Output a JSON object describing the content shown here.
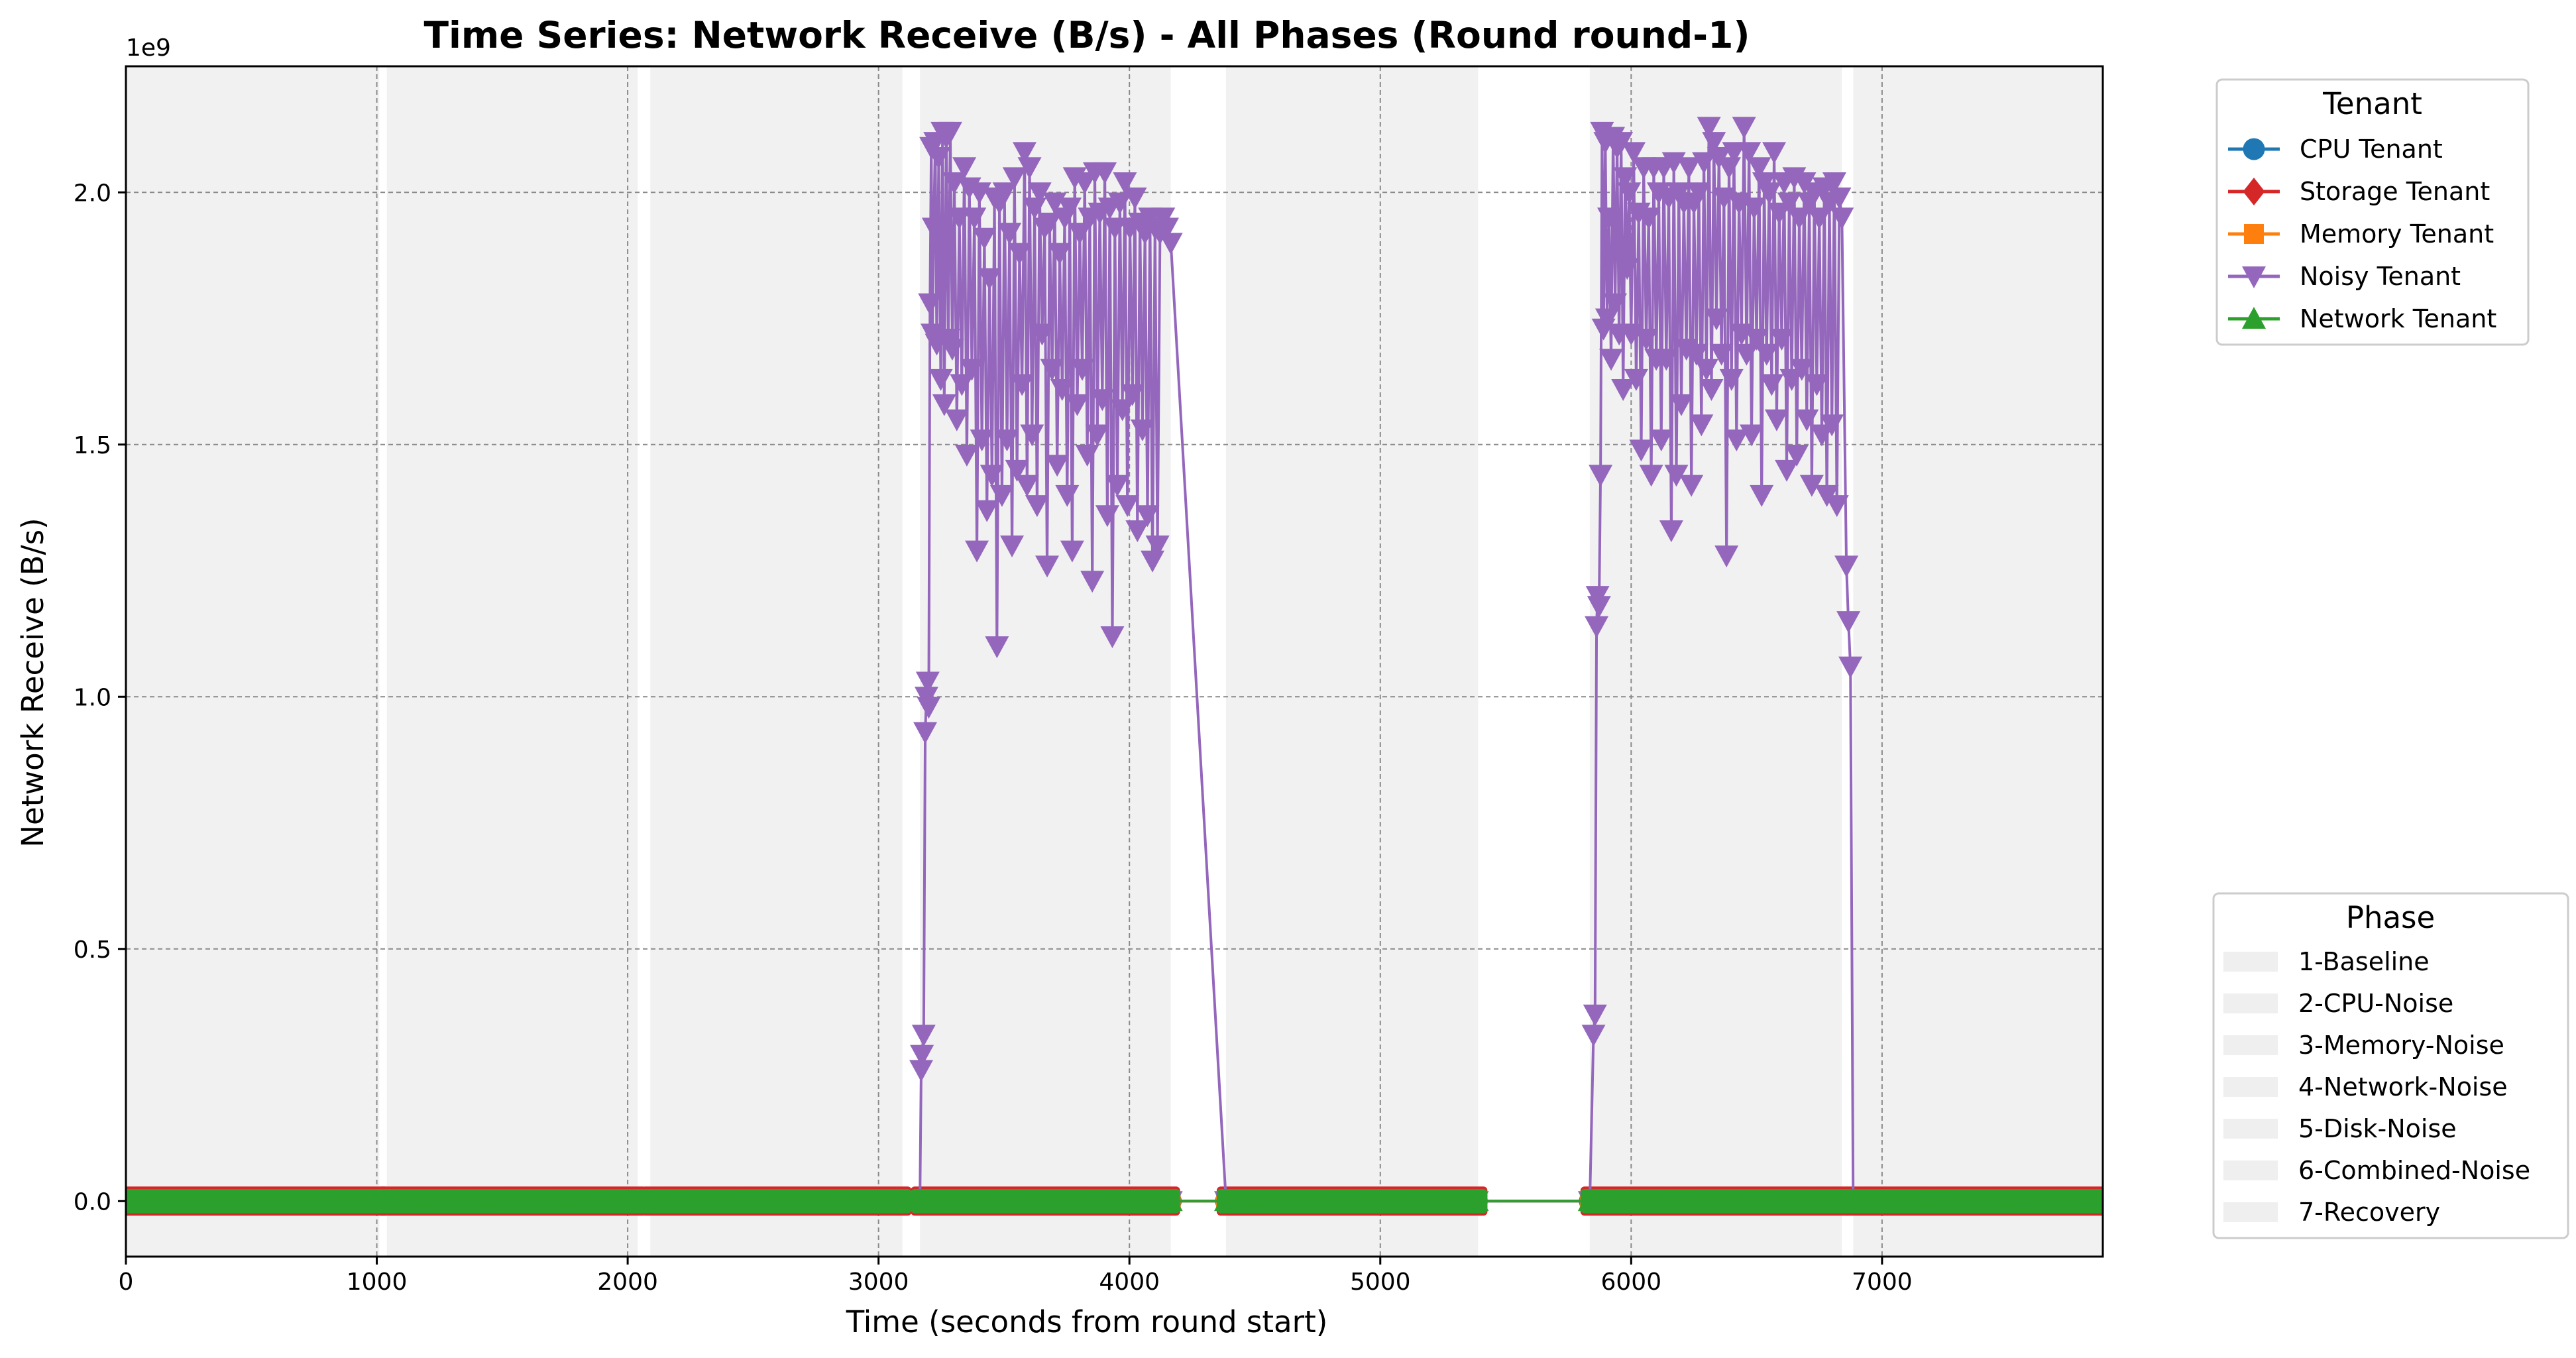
{
  "chart_data": {
    "type": "line",
    "title": "Time Series: Network Receive (B/s) - All Phases (Round round-1)",
    "xlabel": "Time (seconds from round start)",
    "ylabel": "Network Receive (B/s)",
    "y_multiplier_label": "1e9",
    "xlim": [
      0,
      7880
    ],
    "ylim": [
      -0.11,
      2.25
    ],
    "y_scale": 1000000000,
    "xticks": [
      0,
      1000,
      2000,
      3000,
      4000,
      5000,
      6000,
      7000
    ],
    "yticks": [
      0.0,
      0.5,
      1.0,
      1.5,
      2.0
    ],
    "ytick_labels": [
      "0.0",
      "0.5",
      "1.0",
      "1.5",
      "2.0"
    ],
    "grid": true,
    "phase_color": "#ebebeb",
    "phases": [
      {
        "name": "1-Baseline",
        "start": 0,
        "end": 1010
      },
      {
        "name": "2-CPU-Noise",
        "start": 1040,
        "end": 2040
      },
      {
        "name": "3-Memory-Noise",
        "start": 2090,
        "end": 3095
      },
      {
        "name": "4-Network-Noise",
        "start": 3165,
        "end": 4165
      },
      {
        "name": "5-Disk-Noise",
        "start": 4385,
        "end": 5390
      },
      {
        "name": "6-Combined-Noise",
        "start": 5835,
        "end": 6840
      },
      {
        "name": "7-Recovery",
        "start": 6885,
        "end": 7880
      }
    ],
    "legend_tenant_title": "Tenant",
    "legend_phase_title": "Phase",
    "series": [
      {
        "name": "CPU Tenant",
        "color": "#1f77b4",
        "marker": "circle",
        "segments": [
          [
            0,
            1010
          ],
          [
            1040,
            2040
          ],
          [
            2090,
            3095
          ],
          [
            3165,
            4165
          ],
          [
            4385,
            5390
          ],
          [
            5835,
            6840
          ],
          [
            6885,
            7880
          ]
        ],
        "value": 0.0
      },
      {
        "name": "Storage Tenant",
        "color": "#d62728",
        "marker": "diamond",
        "segments": [
          [
            0,
            1010
          ],
          [
            1040,
            2040
          ],
          [
            2090,
            3095
          ],
          [
            3165,
            4165
          ],
          [
            4385,
            5390
          ],
          [
            5835,
            6840
          ],
          [
            6885,
            7880
          ]
        ],
        "value": 0.0
      },
      {
        "name": "Memory Tenant",
        "color": "#ff7f0e",
        "marker": "square",
        "segments": [
          [
            0,
            1010
          ],
          [
            1040,
            2040
          ],
          [
            2090,
            3095
          ],
          [
            3165,
            4165
          ],
          [
            4385,
            5390
          ],
          [
            5835,
            6840
          ],
          [
            6885,
            7880
          ]
        ],
        "value": 0.0
      },
      {
        "name": "Noisy Tenant",
        "color": "#9467bd",
        "marker": "triangle-down",
        "segments": [
          [
            0,
            1010
          ],
          [
            1040,
            2040
          ],
          [
            2090,
            3095
          ],
          [
            3165,
            4165
          ],
          [
            4385,
            5390
          ],
          [
            5835,
            6840
          ],
          [
            6885,
            7880
          ]
        ],
        "value": 0.0,
        "points": [
          [
            3165,
            0.0
          ],
          [
            3170,
            0.26
          ],
          [
            3173,
            0.29
          ],
          [
            3180,
            0.33
          ],
          [
            3186,
            0.93
          ],
          [
            3191,
            1.0
          ],
          [
            3196,
            1.03
          ],
          [
            3200,
            0.98
          ],
          [
            3205,
            1.78
          ],
          [
            3210,
            2.09
          ],
          [
            3215,
            1.72
          ],
          [
            3220,
            1.93
          ],
          [
            3226,
            2.1
          ],
          [
            3232,
            1.7
          ],
          [
            3240,
            2.07
          ],
          [
            3248,
            1.63
          ],
          [
            3255,
            2.12
          ],
          [
            3262,
            1.58
          ],
          [
            3270,
            2.11
          ],
          [
            3278,
            1.71
          ],
          [
            3286,
            2.12
          ],
          [
            3294,
            1.69
          ],
          [
            3302,
            2.02
          ],
          [
            3312,
            1.55
          ],
          [
            3322,
            1.95
          ],
          [
            3332,
            1.62
          ],
          [
            3342,
            2.05
          ],
          [
            3352,
            1.48
          ],
          [
            3362,
            2.01
          ],
          [
            3372,
            1.65
          ],
          [
            3382,
            1.95
          ],
          [
            3392,
            1.29
          ],
          [
            3402,
            2.0
          ],
          [
            3412,
            1.51
          ],
          [
            3422,
            1.91
          ],
          [
            3432,
            1.37
          ],
          [
            3442,
            1.83
          ],
          [
            3452,
            1.44
          ],
          [
            3462,
            1.99
          ],
          [
            3472,
            1.1
          ],
          [
            3482,
            1.98
          ],
          [
            3492,
            1.4
          ],
          [
            3502,
            2.0
          ],
          [
            3512,
            1.51
          ],
          [
            3522,
            1.92
          ],
          [
            3532,
            1.3
          ],
          [
            3542,
            2.03
          ],
          [
            3552,
            1.45
          ],
          [
            3562,
            1.88
          ],
          [
            3572,
            1.62
          ],
          [
            3582,
            2.08
          ],
          [
            3592,
            1.42
          ],
          [
            3602,
            2.05
          ],
          [
            3612,
            1.52
          ],
          [
            3622,
            1.97
          ],
          [
            3632,
            1.38
          ],
          [
            3642,
            2.0
          ],
          [
            3652,
            1.72
          ],
          [
            3662,
            1.93
          ],
          [
            3672,
            1.26
          ],
          [
            3682,
            1.94
          ],
          [
            3692,
            1.65
          ],
          [
            3702,
            1.98
          ],
          [
            3712,
            1.46
          ],
          [
            3722,
            1.88
          ],
          [
            3732,
            1.61
          ],
          [
            3742,
            1.95
          ],
          [
            3752,
            1.4
          ],
          [
            3762,
            1.97
          ],
          [
            3772,
            1.29
          ],
          [
            3782,
            2.03
          ],
          [
            3792,
            1.58
          ],
          [
            3802,
            1.92
          ],
          [
            3812,
            1.65
          ],
          [
            3822,
            2.02
          ],
          [
            3832,
            1.48
          ],
          [
            3842,
            1.95
          ],
          [
            3852,
            1.23
          ],
          [
            3862,
            2.04
          ],
          [
            3872,
            1.52
          ],
          [
            3882,
            1.96
          ],
          [
            3892,
            1.59
          ],
          [
            3902,
            2.04
          ],
          [
            3912,
            1.36
          ],
          [
            3922,
            1.97
          ],
          [
            3932,
            1.12
          ],
          [
            3942,
            1.93
          ],
          [
            3952,
            1.42
          ],
          [
            3962,
            1.98
          ],
          [
            3972,
            1.57
          ],
          [
            3982,
            2.02
          ],
          [
            3992,
            1.38
          ],
          [
            4002,
            1.93
          ],
          [
            4012,
            1.6
          ],
          [
            4022,
            1.99
          ],
          [
            4032,
            1.33
          ],
          [
            4042,
            1.94
          ],
          [
            4052,
            1.53
          ],
          [
            4062,
            1.92
          ],
          [
            4072,
            1.36
          ],
          [
            4082,
            1.95
          ],
          [
            4092,
            1.27
          ],
          [
            4102,
            1.93
          ],
          [
            4112,
            1.3
          ],
          [
            4122,
            1.92
          ],
          [
            4135,
            1.95
          ],
          [
            4150,
            1.93
          ],
          [
            4165,
            1.9
          ],
          [
            4385,
            0.0
          ],
          [
            5835,
            0.0
          ],
          [
            5850,
            0.33
          ],
          [
            5856,
            0.37
          ],
          [
            5862,
            1.14
          ],
          [
            5866,
            1.2
          ],
          [
            5872,
            1.18
          ],
          [
            5878,
            1.44
          ],
          [
            5884,
            2.12
          ],
          [
            5890,
            1.73
          ],
          [
            5897,
            2.1
          ],
          [
            5904,
            1.75
          ],
          [
            5912,
            1.95
          ],
          [
            5920,
            1.67
          ],
          [
            5928,
            2.11
          ],
          [
            5936,
            1.78
          ],
          [
            5944,
            2.09
          ],
          [
            5952,
            1.72
          ],
          [
            5960,
            2.1
          ],
          [
            5968,
            1.61
          ],
          [
            5976,
            2.03
          ],
          [
            5984,
            1.85
          ],
          [
            5992,
            2.0
          ],
          [
            6000,
            1.72
          ],
          [
            6010,
            2.08
          ],
          [
            6020,
            1.63
          ],
          [
            6030,
            1.96
          ],
          [
            6040,
            1.49
          ],
          [
            6050,
            2.05
          ],
          [
            6060,
            1.71
          ],
          [
            6070,
            1.95
          ],
          [
            6080,
            1.44
          ],
          [
            6090,
            2.05
          ],
          [
            6100,
            1.67
          ],
          [
            6110,
            2.0
          ],
          [
            6120,
            1.51
          ],
          [
            6130,
            2.05
          ],
          [
            6140,
            1.67
          ],
          [
            6150,
            1.99
          ],
          [
            6160,
            1.33
          ],
          [
            6170,
            2.06
          ],
          [
            6180,
            1.44
          ],
          [
            6190,
            2.0
          ],
          [
            6200,
            1.58
          ],
          [
            6210,
            1.98
          ],
          [
            6220,
            1.69
          ],
          [
            6230,
            2.05
          ],
          [
            6240,
            1.42
          ],
          [
            6250,
            1.98
          ],
          [
            6260,
            1.68
          ],
          [
            6270,
            2.0
          ],
          [
            6280,
            1.54
          ],
          [
            6290,
            2.06
          ],
          [
            6300,
            1.65
          ],
          [
            6310,
            2.13
          ],
          [
            6320,
            1.61
          ],
          [
            6330,
            2.1
          ],
          [
            6340,
            1.75
          ],
          [
            6350,
            2.07
          ],
          [
            6360,
            1.68
          ],
          [
            6370,
            1.99
          ],
          [
            6380,
            1.28
          ],
          [
            6390,
            2.05
          ],
          [
            6400,
            1.63
          ],
          [
            6410,
            2.08
          ],
          [
            6420,
            1.51
          ],
          [
            6430,
            1.98
          ],
          [
            6440,
            1.72
          ],
          [
            6450,
            2.13
          ],
          [
            6460,
            1.68
          ],
          [
            6470,
            2.08
          ],
          [
            6480,
            1.52
          ],
          [
            6490,
            1.97
          ],
          [
            6500,
            1.71
          ],
          [
            6510,
            2.05
          ],
          [
            6520,
            1.4
          ],
          [
            6530,
            2.02
          ],
          [
            6540,
            1.68
          ],
          [
            6550,
            2.0
          ],
          [
            6560,
            1.62
          ],
          [
            6570,
            2.08
          ],
          [
            6580,
            1.55
          ],
          [
            6590,
            1.96
          ],
          [
            6600,
            1.71
          ],
          [
            6610,
            2.02
          ],
          [
            6620,
            1.45
          ],
          [
            6630,
            1.98
          ],
          [
            6640,
            1.63
          ],
          [
            6650,
            2.03
          ],
          [
            6660,
            1.48
          ],
          [
            6670,
            1.95
          ],
          [
            6680,
            1.65
          ],
          [
            6690,
            2.02
          ],
          [
            6700,
            1.55
          ],
          [
            6710,
            1.98
          ],
          [
            6720,
            1.42
          ],
          [
            6730,
            2.0
          ],
          [
            6740,
            1.62
          ],
          [
            6750,
            1.95
          ],
          [
            6760,
            1.52
          ],
          [
            6770,
            2.01
          ],
          [
            6780,
            1.4
          ],
          [
            6790,
            1.98
          ],
          [
            6800,
            1.54
          ],
          [
            6810,
            2.02
          ],
          [
            6820,
            1.38
          ],
          [
            6830,
            1.99
          ],
          [
            6840,
            1.95
          ],
          [
            6858,
            1.26
          ],
          [
            6866,
            1.15
          ],
          [
            6874,
            1.06
          ],
          [
            6885,
            0.0
          ]
        ]
      },
      {
        "name": "Network Tenant",
        "color": "#2ca02c",
        "marker": "triangle-up",
        "segments": [
          [
            0,
            1010
          ],
          [
            1040,
            2040
          ],
          [
            2090,
            3095
          ],
          [
            3165,
            4165
          ],
          [
            4385,
            5390
          ],
          [
            5835,
            6840
          ],
          [
            6885,
            7880
          ]
        ],
        "value": 0.0
      }
    ]
  }
}
